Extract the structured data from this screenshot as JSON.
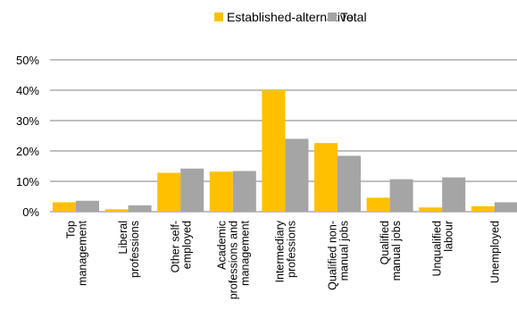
{
  "chart_data": {
    "type": "bar",
    "categories": [
      [
        "Top",
        "management"
      ],
      [
        "Liberal",
        "professions"
      ],
      [
        "Other self-",
        "employed"
      ],
      [
        "Academic",
        "professions and",
        "management"
      ],
      [
        "Intermediary",
        "professions"
      ],
      [
        "Qualified non-",
        "manual jobs"
      ],
      [
        "Qualified",
        "manual jobs"
      ],
      [
        "Unqualified",
        "labour"
      ],
      [
        "Unemployed"
      ]
    ],
    "series": [
      {
        "name": "Established-alternative",
        "color": "#FFC000",
        "values": [
          3.1,
          0.8,
          12.8,
          13.2,
          40.0,
          22.6,
          4.6,
          1.4,
          1.8
        ]
      },
      {
        "name": "Total",
        "color": "#A5A5A5",
        "values": [
          3.6,
          2.1,
          14.2,
          13.4,
          24.0,
          18.4,
          10.7,
          11.3,
          3.1
        ]
      }
    ],
    "ylim": [
      0,
      50
    ],
    "yticks": [
      {
        "value": 0,
        "label": "0%"
      },
      {
        "value": 10,
        "label": "10%"
      },
      {
        "value": 20,
        "label": "20%"
      },
      {
        "value": 30,
        "label": "30%"
      },
      {
        "value": 40,
        "label": "40%"
      },
      {
        "value": 50,
        "label": "50%"
      }
    ],
    "grid": true,
    "legend_position": "top-center",
    "gridline_color": "#808080"
  }
}
